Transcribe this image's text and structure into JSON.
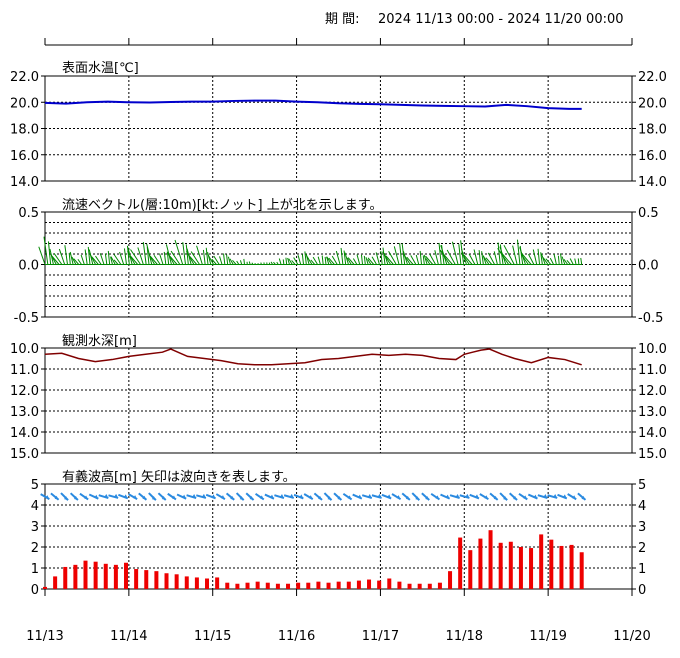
{
  "header": {
    "period_label": "期 間:",
    "period_range": "2024 11/13 00:00 - 2024 11/20 00:00"
  },
  "colors": {
    "temp": "#0000cc",
    "current": "#008800",
    "depth": "#800000",
    "wave_vector": "#2a8ae0",
    "wave_height": "#ee0000"
  },
  "chart_data": [
    {
      "type": "line",
      "title": "表面水温[℃]",
      "ylim": [
        14.0,
        22.0
      ],
      "yticks": [
        "22.0",
        "20.0",
        "18.0",
        "16.0",
        "14.0"
      ],
      "x": [
        0,
        0.25,
        0.5,
        0.75,
        1.0,
        1.25,
        1.5,
        1.75,
        2.0,
        2.25,
        2.5,
        2.75,
        3.0,
        3.25,
        3.5,
        3.75,
        4.0,
        4.25,
        4.5,
        4.75,
        5.0,
        5.25,
        5.5,
        5.75,
        6.0,
        6.25,
        6.4
      ],
      "values": [
        19.95,
        19.9,
        20.0,
        20.05,
        20.0,
        19.98,
        20.02,
        20.05,
        20.05,
        20.1,
        20.12,
        20.12,
        20.05,
        20.0,
        19.92,
        19.88,
        19.85,
        19.8,
        19.75,
        19.72,
        19.7,
        19.68,
        19.8,
        19.7,
        19.55,
        19.5,
        19.5
      ]
    },
    {
      "type": "vector",
      "title": "流速ベクトル(層:10m)[kt:ノット] 上が北を示します。",
      "ylim": [
        -0.5,
        0.5
      ],
      "yticks": [
        "0.5",
        "0.0",
        "-0.5"
      ],
      "speeds": [
        0.25,
        0.15,
        0.18,
        0.12,
        0.1,
        0.16,
        0.14,
        0.12,
        0.1,
        0.15,
        0.18,
        0.22,
        0.2,
        0.15,
        0.12,
        0.2,
        0.25,
        0.18,
        0.2,
        0.15,
        0.12,
        0.1,
        0.08,
        0.05,
        0.03,
        0.02,
        0.02,
        0.04,
        0.06,
        0.08,
        0.1,
        0.12,
        0.1,
        0.08,
        0.12,
        0.15,
        0.12,
        0.1,
        0.08,
        0.12,
        0.15,
        0.18,
        0.2,
        0.15,
        0.12,
        0.1,
        0.15,
        0.2,
        0.25,
        0.22,
        0.18,
        0.15,
        0.12,
        0.15,
        0.2,
        0.25,
        0.22,
        0.18,
        0.15,
        0.12,
        0.1,
        0.1,
        0.08,
        0.06
      ]
    },
    {
      "type": "line",
      "title": "観測水深[m]",
      "ylim": [
        10.0,
        15.0
      ],
      "yticks": [
        "10.0",
        "11.0",
        "12.0",
        "13.0",
        "14.0",
        "15.0"
      ],
      "x": [
        0,
        0.2,
        0.4,
        0.6,
        0.8,
        1.0,
        1.2,
        1.4,
        1.5,
        1.7,
        1.9,
        2.1,
        2.3,
        2.5,
        2.7,
        2.9,
        3.1,
        3.3,
        3.5,
        3.7,
        3.9,
        4.1,
        4.3,
        4.5,
        4.7,
        4.9,
        5.0,
        5.1,
        5.2,
        5.3,
        5.45,
        5.6,
        5.8,
        6.0,
        6.2,
        6.4
      ],
      "values": [
        10.3,
        10.25,
        10.5,
        10.65,
        10.55,
        10.4,
        10.3,
        10.2,
        10.05,
        10.4,
        10.5,
        10.6,
        10.75,
        10.8,
        10.8,
        10.75,
        10.7,
        10.55,
        10.5,
        10.4,
        10.3,
        10.35,
        10.3,
        10.35,
        10.5,
        10.55,
        10.3,
        10.2,
        10.1,
        10.05,
        10.3,
        10.5,
        10.7,
        10.45,
        10.55,
        10.8
      ]
    },
    {
      "type": "bar",
      "title": "有義波高[m] 矢印は波向きを表します。",
      "ylim": [
        0,
        5
      ],
      "yticks": [
        "5",
        "4",
        "3",
        "2",
        "1",
        "0"
      ],
      "values": [
        0.1,
        0.6,
        1.05,
        1.15,
        1.35,
        1.3,
        1.2,
        1.15,
        1.25,
        0.95,
        0.9,
        0.85,
        0.75,
        0.7,
        0.6,
        0.55,
        0.5,
        0.55,
        0.3,
        0.25,
        0.3,
        0.35,
        0.3,
        0.25,
        0.25,
        0.3,
        0.3,
        0.35,
        0.3,
        0.35,
        0.35,
        0.4,
        0.45,
        0.4,
        0.5,
        0.35,
        0.25,
        0.25,
        0.25,
        0.3,
        0.85,
        2.45,
        1.85,
        2.4,
        2.8,
        2.2,
        2.25,
        2.0,
        1.95,
        2.6,
        2.35,
        2.05,
        2.1,
        1.75
      ],
      "arrows_y": 4.4,
      "arrow_count": 56
    }
  ],
  "xaxis": {
    "labels": [
      "11/13",
      "11/14",
      "11/15",
      "11/16",
      "11/17",
      "11/18",
      "11/19",
      "11/20"
    ]
  }
}
